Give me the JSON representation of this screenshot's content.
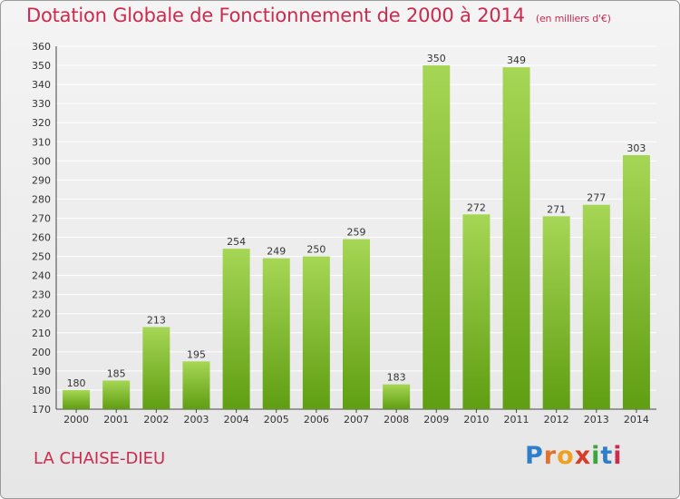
{
  "header": {
    "title": "Dotation Globale de Fonctionnement de 2000 à 2014",
    "subtitle": "(en milliers d'€)"
  },
  "footer": {
    "location": "LA CHAISE-DIEU",
    "logo_text": "Proxiti"
  },
  "colors": {
    "title": "#cc2a4e",
    "bar_top": "#a6d655",
    "bar_bottom": "#5f9e12",
    "grid": "#ffffff"
  },
  "chart_data": {
    "type": "bar",
    "title": "Dotation Globale de Fonctionnement de 2000 à 2014",
    "subtitle": "(en milliers d'€)",
    "categories": [
      "2000",
      "2001",
      "2002",
      "2003",
      "2004",
      "2005",
      "2006",
      "2007",
      "2008",
      "2009",
      "2010",
      "2011",
      "2012",
      "2013",
      "2014"
    ],
    "values": [
      180,
      185,
      213,
      195,
      254,
      249,
      250,
      259,
      183,
      350,
      272,
      349,
      271,
      277,
      303
    ],
    "ylim": [
      170,
      360
    ],
    "ytick_step": 10,
    "grid": true,
    "legend": "none",
    "xlabel": "",
    "ylabel": ""
  }
}
